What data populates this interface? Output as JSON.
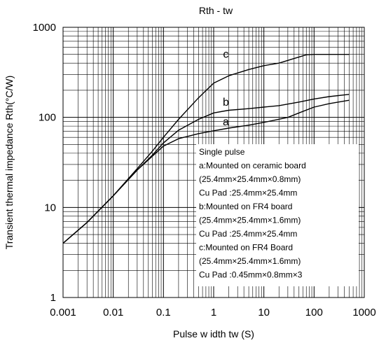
{
  "chart_data": {
    "type": "line",
    "title": "Rth - tw",
    "xlabel": "Pulse w idth tw (S)",
    "ylabel": "Transient thermal impedance Rth(°C/W)",
    "xscale": "log",
    "yscale": "log",
    "xlim": [
      0.001,
      1000
    ],
    "ylim": [
      1,
      1000
    ],
    "grid": true,
    "x_ticks": [
      "0.001",
      "0.01",
      "0.1",
      "1",
      "10",
      "100",
      "1000"
    ],
    "y_ticks": [
      "1",
      "10",
      "100",
      "1000"
    ],
    "series": [
      {
        "name": "a",
        "x": [
          0.001,
          0.003,
          0.01,
          0.03,
          0.06,
          0.1,
          0.2,
          0.5,
          1,
          2,
          5,
          10,
          30,
          50,
          100,
          200,
          500
        ],
        "y": [
          4.0,
          6.8,
          13.5,
          26,
          37,
          48,
          58,
          66,
          71,
          76,
          82,
          88,
          100,
          112,
          130,
          142,
          155
        ]
      },
      {
        "name": "b",
        "x": [
          0.001,
          0.003,
          0.01,
          0.03,
          0.06,
          0.1,
          0.2,
          0.5,
          1,
          2,
          5,
          10,
          20,
          50,
          100,
          200,
          500
        ],
        "y": [
          4.0,
          6.8,
          13.5,
          26,
          38,
          52,
          72,
          95,
          112,
          120,
          125,
          130,
          135,
          148,
          160,
          170,
          180
        ]
      },
      {
        "name": "c",
        "x": [
          0.001,
          0.003,
          0.01,
          0.03,
          0.06,
          0.1,
          0.2,
          0.5,
          1,
          2,
          5,
          10,
          20,
          40,
          70,
          100,
          200,
          500
        ],
        "y": [
          4.0,
          6.8,
          13.5,
          27,
          42,
          60,
          95,
          165,
          240,
          290,
          340,
          375,
          400,
          450,
          495,
          500,
          500,
          500
        ]
      }
    ],
    "curve_labels": [
      {
        "text": "a",
        "x": 1.75,
        "y": 82
      },
      {
        "text": "b",
        "x": 1.75,
        "y": 135
      },
      {
        "text": "c",
        "x": 1.75,
        "y": 460
      }
    ],
    "legend_box": {
      "placement": "bottom-right",
      "lines": [
        "Single pulse",
        "a:Mounted on ceramic board",
        "(25.4mm×25.4mm×0.8mm)",
        "Cu Pad :25.4mm×25.4mm",
        "b:Mounted on FR4 board",
        "(25.4mm×25.4mm×1.6mm)",
        "Cu Pad :25.4mm×25.4mm",
        "c:Mounted on FR4 Board",
        "(25.4mm×25.4mm×1.6mm)",
        "Cu Pad :0.45mm×0.8mm×3"
      ]
    }
  }
}
